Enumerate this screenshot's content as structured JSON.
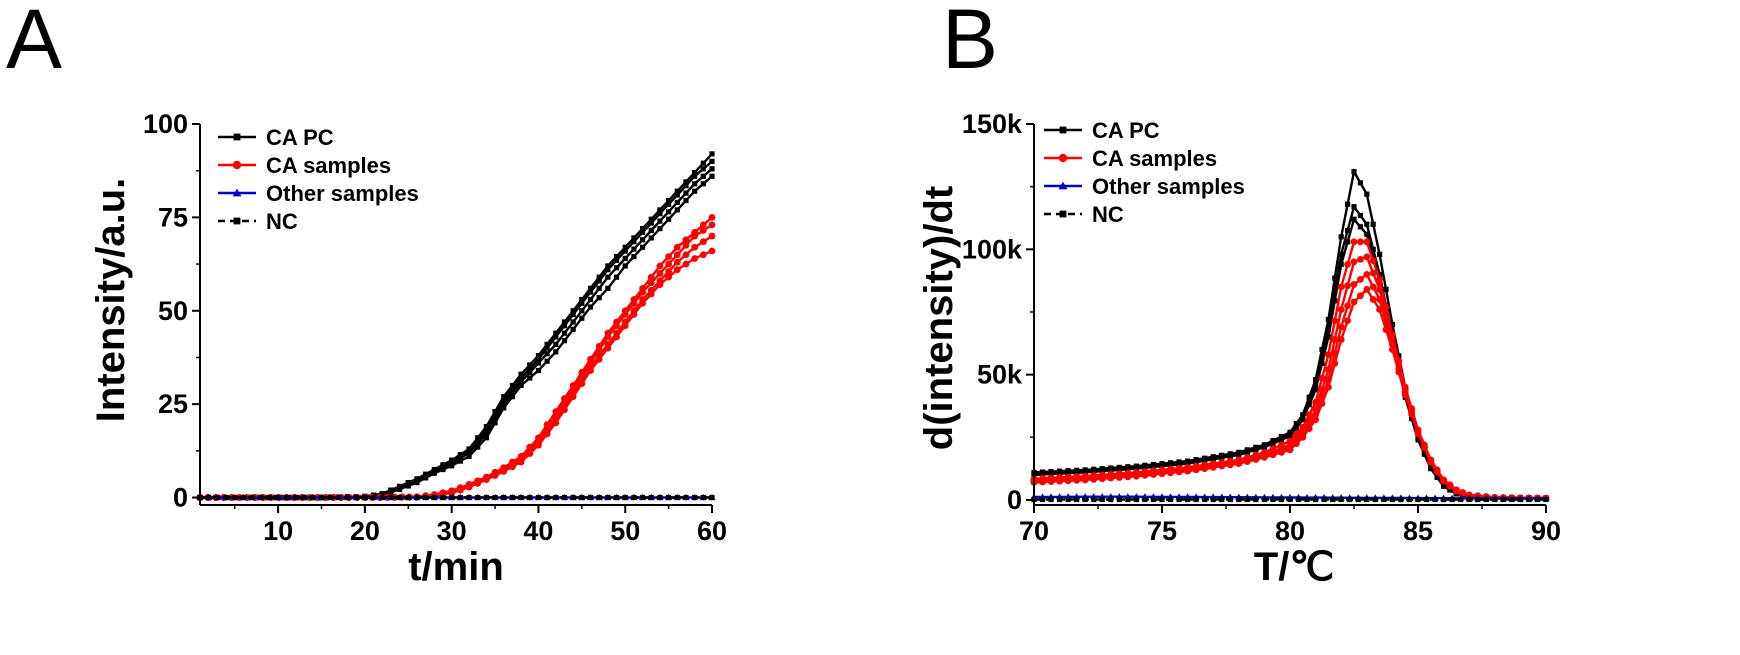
{
  "chart_data": [
    {
      "panel": "A",
      "type": "line",
      "xlabel": "t/min",
      "ylabel": "Intensity/a.u.",
      "xlim": [
        1,
        60
      ],
      "ylim": [
        -2,
        100
      ],
      "xticks": [
        "10",
        "20",
        "30",
        "40",
        "50",
        "60"
      ],
      "xtick_values": [
        10,
        20,
        30,
        40,
        50,
        60
      ],
      "yticks": [
        "0",
        "25",
        "50",
        "75",
        "100"
      ],
      "ytick_values": [
        0,
        25,
        50,
        75,
        100
      ],
      "legend": [
        "CA PC",
        "CA samples",
        "Other samples",
        "NC"
      ],
      "legend_position": "top-left",
      "series": [
        {
          "name": "CA PC",
          "group": "CA PC",
          "color": "#000000",
          "marker": "square",
          "dash": false,
          "x": [
            1,
            15,
            20,
            22,
            24,
            26,
            28,
            30,
            32,
            34,
            36,
            38,
            40,
            42,
            44,
            46,
            48,
            50,
            52,
            54,
            56,
            58,
            60
          ],
          "y": [
            0,
            0,
            0.3,
            1,
            3,
            5,
            7.5,
            10,
            13,
            19,
            27,
            33,
            38,
            44,
            50,
            56,
            62,
            67,
            72,
            77,
            82,
            87,
            92
          ]
        },
        {
          "name": "CA PC",
          "group": "CA PC",
          "color": "#000000",
          "marker": "square",
          "dash": false,
          "x": [
            1,
            15,
            20,
            22,
            24,
            26,
            28,
            30,
            32,
            34,
            36,
            38,
            40,
            42,
            44,
            46,
            48,
            50,
            52,
            54,
            56,
            58,
            60
          ],
          "y": [
            0,
            0,
            0.3,
            1,
            2.8,
            4.8,
            7.2,
            9.5,
            12.5,
            18,
            26,
            32,
            37,
            43,
            49,
            55,
            61,
            66,
            71,
            76,
            81,
            86,
            90
          ]
        },
        {
          "name": "CA PC",
          "group": "CA PC",
          "color": "#000000",
          "marker": "square",
          "dash": false,
          "x": [
            1,
            15,
            20,
            22,
            24,
            26,
            28,
            30,
            32,
            34,
            36,
            38,
            40,
            42,
            44,
            46,
            48,
            50,
            52,
            54,
            56,
            58,
            60
          ],
          "y": [
            0,
            0,
            0.2,
            0.8,
            2.5,
            4.5,
            7,
            9,
            12,
            17,
            25,
            31,
            36,
            41,
            47,
            53,
            59,
            64,
            69,
            74,
            79,
            84,
            88
          ]
        },
        {
          "name": "CA PC",
          "group": "CA PC",
          "color": "#000000",
          "marker": "square",
          "dash": false,
          "x": [
            1,
            15,
            20,
            22,
            24,
            26,
            28,
            30,
            32,
            34,
            36,
            38,
            40,
            42,
            44,
            46,
            48,
            50,
            52,
            54,
            56,
            58,
            60
          ],
          "y": [
            0,
            0,
            0.2,
            0.6,
            2.2,
            4,
            6.5,
            8.5,
            11,
            16,
            24,
            30,
            34,
            39,
            45,
            51,
            56,
            62,
            67,
            72,
            77,
            82,
            86
          ]
        },
        {
          "name": "CA samples",
          "group": "CA samples",
          "color": "#ff0000",
          "marker": "circle",
          "dash": false,
          "x": [
            1,
            20,
            26,
            28,
            30,
            32,
            34,
            36,
            38,
            40,
            42,
            44,
            46,
            48,
            50,
            52,
            54,
            56,
            58,
            60
          ],
          "y": [
            0,
            0,
            0.2,
            0.8,
            1.8,
            3.5,
            5.5,
            8,
            11,
            16,
            23,
            30,
            37,
            44,
            50,
            56,
            62,
            67,
            71,
            75
          ]
        },
        {
          "name": "CA samples",
          "group": "CA samples",
          "color": "#ff0000",
          "marker": "circle",
          "dash": false,
          "x": [
            1,
            20,
            26,
            28,
            30,
            32,
            34,
            36,
            38,
            40,
            42,
            44,
            46,
            48,
            50,
            52,
            54,
            56,
            58,
            60
          ],
          "y": [
            0,
            0,
            0.2,
            0.7,
            1.6,
            3.2,
            5.2,
            7.6,
            10.5,
            15,
            22,
            29,
            36,
            43,
            49,
            55,
            60,
            65,
            70,
            73
          ]
        },
        {
          "name": "CA samples",
          "group": "CA samples",
          "color": "#ff0000",
          "marker": "circle",
          "dash": false,
          "x": [
            1,
            20,
            26,
            28,
            30,
            32,
            34,
            36,
            38,
            40,
            42,
            44,
            46,
            48,
            50,
            52,
            54,
            56,
            58,
            60
          ],
          "y": [
            0,
            0,
            0.1,
            0.6,
            1.4,
            3,
            5,
            7.3,
            10,
            14.5,
            21,
            28,
            35,
            41,
            47,
            53,
            58,
            63,
            67,
            70
          ]
        },
        {
          "name": "CA samples",
          "group": "CA samples",
          "color": "#ff0000",
          "marker": "circle",
          "dash": false,
          "x": [
            1,
            20,
            26,
            28,
            30,
            32,
            34,
            36,
            38,
            40,
            42,
            44,
            46,
            48,
            50,
            52,
            54,
            56,
            58,
            60
          ],
          "y": [
            0,
            0,
            0.1,
            0.5,
            1.2,
            2.8,
            4.8,
            7,
            9.5,
            14,
            20,
            27,
            34,
            40,
            46,
            52,
            57,
            61,
            64,
            66
          ]
        },
        {
          "name": "Other samples",
          "group": "Other samples",
          "color": "#0000cc",
          "marker": "triangle",
          "dash": false,
          "x": [
            1,
            5,
            10,
            15,
            20,
            25,
            30,
            35,
            40,
            45,
            50,
            55,
            60
          ],
          "y": [
            0,
            0,
            0,
            0,
            0,
            0,
            0,
            0,
            0,
            0,
            0,
            0,
            0
          ]
        },
        {
          "name": "NC",
          "group": "NC",
          "color": "#000000",
          "marker": "square",
          "dash": true,
          "x": [
            1,
            5,
            10,
            15,
            20,
            25,
            30,
            35,
            40,
            45,
            50,
            55,
            60
          ],
          "y": [
            0,
            0,
            0,
            0,
            0,
            0,
            0,
            0,
            0,
            0,
            0,
            0,
            0
          ]
        }
      ]
    },
    {
      "panel": "B",
      "type": "line",
      "xlabel": "T/℃",
      "ylabel": "d(intensity)/dt",
      "xlim": [
        70,
        90
      ],
      "ylim": [
        -2000,
        150000
      ],
      "xticks": [
        "70",
        "75",
        "80",
        "85",
        "90"
      ],
      "xtick_values": [
        70,
        75,
        80,
        85,
        90
      ],
      "yticks": [
        "0",
        "50k",
        "100k",
        "150k"
      ],
      "ytick_values": [
        0,
        50000,
        100000,
        150000
      ],
      "legend": [
        "CA PC",
        "CA samples",
        "Other samples",
        "NC"
      ],
      "legend_position": "top-left",
      "series": [
        {
          "name": "CA PC",
          "group": "CA PC",
          "color": "#000000",
          "marker": "square",
          "dash": false,
          "x": [
            70,
            72,
            74,
            76,
            78,
            79,
            80,
            80.5,
            81,
            81.5,
            82,
            82.5,
            83,
            83.5,
            84,
            84.5,
            85,
            85.5,
            86,
            86.5,
            87,
            88,
            90
          ],
          "y": [
            11000,
            12000,
            13500,
            15500,
            19000,
            22000,
            27000,
            34000,
            48000,
            72000,
            105000,
            131000,
            122000,
            98000,
            70000,
            45000,
            27000,
            14000,
            6000,
            2500,
            1500,
            1000,
            800
          ]
        },
        {
          "name": "CA PC",
          "group": "CA PC",
          "color": "#000000",
          "marker": "square",
          "dash": false,
          "x": [
            70,
            72,
            74,
            76,
            78,
            79,
            80,
            80.5,
            81,
            81.5,
            82,
            82.5,
            83,
            83.5,
            84,
            84.5,
            85,
            85.5,
            86,
            86.5,
            87,
            88,
            90
          ],
          "y": [
            10500,
            11500,
            13000,
            15000,
            18500,
            21500,
            26000,
            33000,
            46000,
            68000,
            98000,
            117000,
            110000,
            90000,
            65000,
            42000,
            25000,
            13000,
            5500,
            2500,
            1500,
            1000,
            800
          ]
        },
        {
          "name": "CA PC",
          "group": "CA PC",
          "color": "#000000",
          "marker": "square",
          "dash": false,
          "x": [
            70,
            72,
            74,
            76,
            78,
            79,
            80,
            80.5,
            81,
            81.5,
            82,
            82.5,
            83,
            83.5,
            84,
            84.5,
            85,
            85.5,
            86,
            86.5,
            87,
            88,
            90
          ],
          "y": [
            10000,
            11000,
            12500,
            14500,
            18000,
            21000,
            25500,
            32000,
            44000,
            65000,
            94000,
            112000,
            106000,
            87000,
            63000,
            41000,
            24000,
            12500,
            5500,
            2500,
            1500,
            1000,
            800
          ]
        },
        {
          "name": "CA samples",
          "group": "CA samples",
          "color": "#ff0000",
          "marker": "circle",
          "dash": false,
          "x": [
            70,
            72,
            74,
            76,
            78,
            79,
            80,
            80.5,
            81,
            81.5,
            82,
            82.5,
            83,
            83.5,
            84,
            84.5,
            85,
            85.5,
            86,
            86.5,
            87,
            88,
            90
          ],
          "y": [
            8500,
            9500,
            11000,
            13000,
            16000,
            19000,
            23500,
            29000,
            39000,
            58000,
            85000,
            103000,
            103000,
            88000,
            66000,
            45000,
            28000,
            16000,
            8000,
            4000,
            2000,
            1000,
            700
          ]
        },
        {
          "name": "CA samples",
          "group": "CA samples",
          "color": "#ff0000",
          "marker": "circle",
          "dash": false,
          "x": [
            70,
            72,
            74,
            76,
            78,
            79,
            80,
            80.5,
            81,
            81.5,
            82,
            82.5,
            83,
            83.5,
            84,
            84.5,
            85,
            85.5,
            86,
            86.5,
            87,
            88,
            90
          ],
          "y": [
            8000,
            9000,
            10500,
            12500,
            15500,
            18000,
            22000,
            27000,
            36000,
            52000,
            76000,
            95000,
            97000,
            84000,
            64000,
            44000,
            27000,
            15500,
            8000,
            4000,
            2000,
            1000,
            700
          ]
        },
        {
          "name": "CA samples",
          "group": "CA samples",
          "color": "#ff0000",
          "marker": "circle",
          "dash": false,
          "x": [
            70,
            72,
            74,
            76,
            78,
            79,
            80,
            80.5,
            81,
            81.5,
            82,
            82.5,
            83,
            83.5,
            84,
            84.5,
            85,
            85.5,
            86,
            86.5,
            87,
            88,
            90
          ],
          "y": [
            7500,
            8500,
            10000,
            12000,
            15000,
            17500,
            21000,
            26000,
            34000,
            48000,
            69000,
            86000,
            90000,
            80000,
            62000,
            43000,
            27000,
            15000,
            7500,
            3500,
            2000,
            1000,
            700
          ]
        },
        {
          "name": "CA samples",
          "group": "CA samples",
          "color": "#ff0000",
          "marker": "circle",
          "dash": false,
          "x": [
            70,
            72,
            74,
            76,
            78,
            79,
            80,
            80.5,
            81,
            81.5,
            82,
            82.5,
            83,
            83.5,
            84,
            84.5,
            85,
            85.5,
            86,
            86.5,
            87,
            88,
            90
          ],
          "y": [
            7000,
            8000,
            9500,
            11500,
            14500,
            17000,
            20000,
            25000,
            32000,
            45000,
            64000,
            79000,
            84000,
            76000,
            60000,
            42000,
            26500,
            15000,
            7500,
            3500,
            2000,
            1000,
            700
          ]
        },
        {
          "name": "Other samples",
          "group": "Other samples",
          "color": "#0000cc",
          "marker": "triangle",
          "dash": false,
          "x": [
            70,
            72,
            74,
            76,
            78,
            80,
            82,
            84,
            86,
            88,
            90
          ],
          "y": [
            1200,
            1300,
            1300,
            1200,
            1100,
            1000,
            900,
            800,
            700,
            600,
            600
          ]
        },
        {
          "name": "NC",
          "group": "NC",
          "color": "#000000",
          "marker": "square",
          "dash": true,
          "x": [
            70,
            72,
            74,
            76,
            78,
            80,
            82,
            84,
            86,
            88,
            90
          ],
          "y": [
            200,
            200,
            200,
            200,
            200,
            200,
            200,
            200,
            200,
            200,
            200
          ]
        }
      ]
    }
  ],
  "panels": {
    "a": {
      "label": "A"
    },
    "b": {
      "label": "B"
    }
  }
}
